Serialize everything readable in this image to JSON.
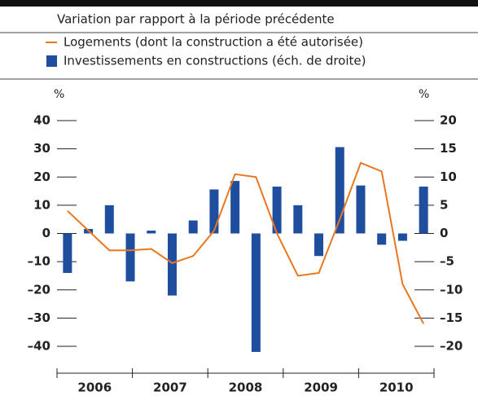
{
  "chart_data": {
    "type": "bar",
    "title": "Variation par rapport à la période précédente",
    "ylabel": "%",
    "y2label": "%",
    "categories": [
      null,
      null,
      null,
      null,
      null,
      null,
      null,
      null,
      null,
      null,
      null,
      null,
      null,
      null,
      null,
      null,
      null,
      null
    ],
    "year_labels": [
      "2006",
      "2007",
      "2008",
      "2009",
      "2010"
    ],
    "series": [
      {
        "name": "Logements (dont la construction a été autorisée)",
        "type": "line",
        "color": "#e87722",
        "values": [
          8,
          1,
          -6,
          -6,
          -5.5,
          -10.5,
          -8,
          1,
          21,
          20,
          0,
          -15,
          -14,
          5,
          25,
          22,
          -18,
          -32
        ]
      },
      {
        "name": "Investissements en constructions (éch. de droite)",
        "type": "bar",
        "color": "#1f4e9e",
        "axis": "y2",
        "values": [
          -7,
          0.8,
          5,
          -8.5,
          0.5,
          -11,
          2.3,
          7.8,
          9.3,
          -21,
          8.3,
          5,
          -4,
          15.3,
          8.5,
          -2,
          -1.3,
          8.3
        ]
      }
    ],
    "ylim": [
      -40,
      40
    ],
    "yticks": [
      40,
      30,
      20,
      10,
      0,
      {
        "value": -10,
        "label": "–10"
      },
      {
        "value": -20,
        "label": "–20"
      },
      {
        "value": -30,
        "label": "–30"
      },
      {
        "value": -40,
        "label": "–40"
      }
    ],
    "y2lim": [
      -20,
      20
    ],
    "y2ticks": [
      20,
      15,
      10,
      5,
      0,
      {
        "value": -5,
        "label": "–5"
      },
      {
        "value": -10,
        "label": "–10"
      },
      {
        "value": -15,
        "label": "–15"
      },
      {
        "value": -20,
        "label": "–20"
      }
    ]
  }
}
